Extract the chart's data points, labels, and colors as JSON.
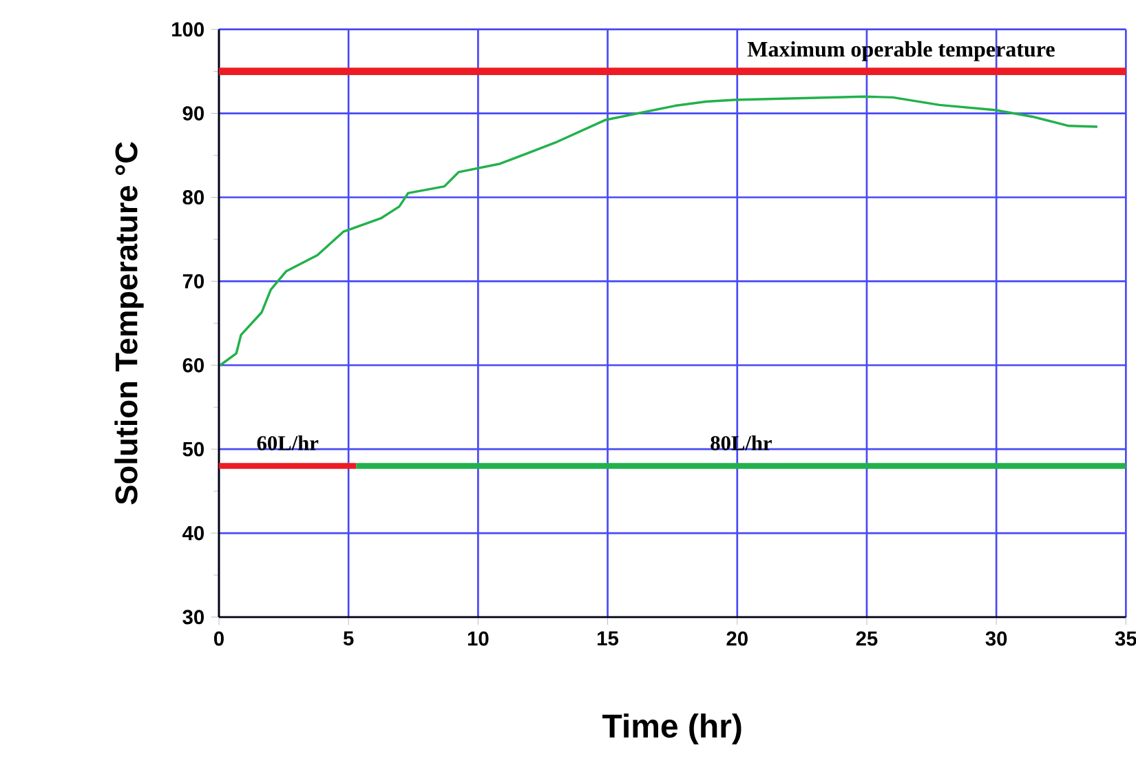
{
  "chart_data": {
    "type": "line",
    "xlabel": "Time (hr)",
    "ylabel": "Solution Temperature °C",
    "xlim": [
      0,
      35
    ],
    "ylim": [
      30,
      100
    ],
    "xticks": [
      0,
      5,
      10,
      15,
      20,
      25,
      30,
      35
    ],
    "yticks": [
      30,
      40,
      50,
      60,
      70,
      80,
      90,
      100
    ],
    "grid": true,
    "legend": false,
    "marker": "none",
    "line_style": "solid",
    "series": [
      {
        "color": "#22b14c",
        "x": [
          0.05,
          0.67,
          0.85,
          1.65,
          2.0,
          2.6,
          3.8,
          4.8,
          6.25,
          6.96,
          7.3,
          8.7,
          9.25,
          10.85,
          12.97,
          14.9,
          17.6,
          18.8,
          19.9,
          24.9,
          26.0,
          27.8,
          29.95,
          31.4,
          32.8,
          33.9
        ],
        "values": [
          60,
          61.4,
          63.6,
          66.3,
          69.0,
          71.2,
          73.1,
          75.9,
          77.5,
          78.9,
          80.5,
          81.3,
          83.0,
          84.0,
          86.5,
          89.2,
          90.9,
          91.4,
          91.6,
          92.0,
          91.9,
          91.0,
          90.4,
          89.6,
          88.5,
          88.4
        ]
      },
      {
        "name": "60L/hr",
        "color": "#ed1c24",
        "x": [
          0,
          5.3
        ],
        "values": [
          48,
          48
        ]
      },
      {
        "name": "80L/hr",
        "color": "#22b14c",
        "x": [
          5.3,
          35
        ],
        "values": [
          48,
          48
        ]
      }
    ],
    "ref_lines": [
      {
        "axis": "y",
        "value": 95,
        "label": "Maximum operable temperature",
        "color": "#ed1c24"
      }
    ]
  }
}
